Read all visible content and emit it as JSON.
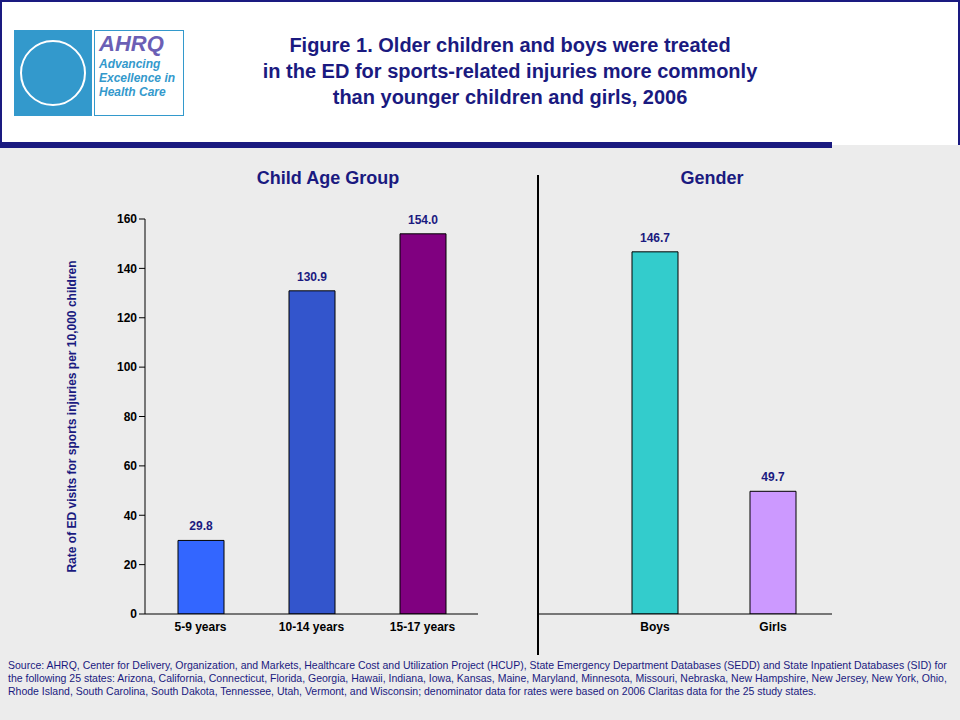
{
  "title": "Figure 1. Older children and boys were treated\nin the ED for sports-related injuries more commonly\nthan younger children and girls, 2006",
  "logo": {
    "name": "AHRQ",
    "tagline": "Advancing Excellence in Health Care"
  },
  "source": "Source: AHRQ, Center for Delivery, Organization, and Markets, Healthcare Cost and Utilization Project (HCUP), State Emergency Department Databases (SEDD) and State Inpatient Databases (SID) for the following 25 states: Arizona, California, Connecticut, Florida, Georgia, Hawaii, Indiana, Iowa, Kansas, Maine, Maryland, Minnesota, Missouri, Nebraska, New Hampshire, New Jersey, New York, Ohio, Rhode Island, South Carolina, South Dakota, Tennessee, Utah, Vermont, and Wisconsin; denominator data for rates were based on 2006 Claritas data for the 25 study states.",
  "chart_data": [
    {
      "type": "bar",
      "subtitle": "Child Age Group",
      "ylabel": "Rate of ED visits for sports injuries per 10,000 children",
      "categories": [
        "5-9 years",
        "10-14 years",
        "15-17 years"
      ],
      "values": [
        29.8,
        130.9,
        154.0
      ],
      "value_labels": [
        "29.8",
        "130.9",
        "154.0"
      ],
      "colors": [
        "#3366ff",
        "#3355cc",
        "#800080"
      ],
      "ylim": [
        0,
        160
      ],
      "yticks": [
        0,
        20,
        40,
        60,
        80,
        100,
        120,
        140,
        160
      ],
      "data_labels": true
    },
    {
      "type": "bar",
      "subtitle": "Gender",
      "categories": [
        "Boys",
        "Girls"
      ],
      "values": [
        146.7,
        49.7
      ],
      "value_labels": [
        "146.7",
        "49.7"
      ],
      "colors": [
        "#33cccc",
        "#cc99ff"
      ],
      "ylim": [
        0,
        160
      ],
      "tick_labels": "x",
      "data_labels": true
    }
  ]
}
